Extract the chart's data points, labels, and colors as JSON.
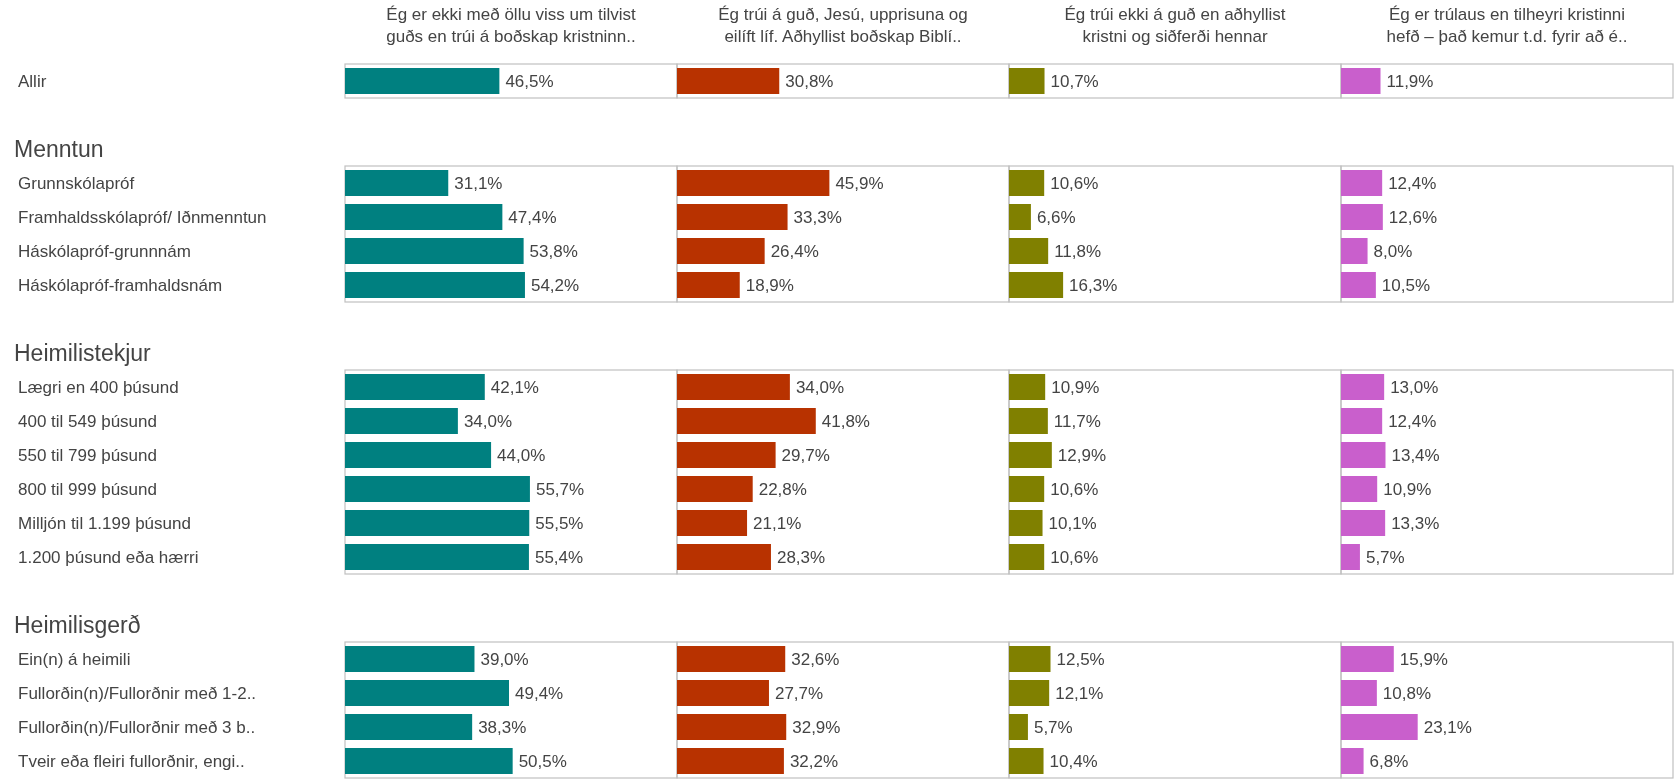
{
  "chart_data": [
    {
      "type": "bar",
      "orientation": "horizontal",
      "title": "Ég er ekki með öllu viss um tilvist\nguðs en trúi á boðskap kristninn..",
      "categories": [
        "Allir",
        null,
        "Menntun",
        "Grunnskólapróf",
        "Framhaldsskólapróf/ Iðnmenntun",
        "Háskólapróf-grunnnám",
        "Háskólapróf-framhaldsnám",
        null,
        "Heimilistekjur",
        "Lægri en 400 þúsund",
        "400 til 549 þúsund",
        "550 til 799 þúsund",
        "800 til 999 þúsund",
        "Milljón til 1.199 þúsund",
        "1.200 þúsund eða hærri",
        null,
        "Heimilisgerð",
        "Ein(n) á heimili",
        "Fullorðin(n)/Fullorðnir með 1-2..",
        "Fullorðin(n)/Fullorðnir með 3 b..",
        "Tveir eða fleiri fullorðnir, engi.."
      ],
      "values": [
        46.5,
        null,
        null,
        31.1,
        47.4,
        53.8,
        54.2,
        null,
        null,
        42.1,
        34.0,
        44.0,
        55.7,
        55.5,
        55.4,
        null,
        null,
        39.0,
        49.4,
        38.3,
        50.5
      ],
      "value_labels": [
        "46,5%",
        null,
        null,
        "31,1%",
        "47,4%",
        "53,8%",
        "54,2%",
        null,
        null,
        "42,1%",
        "34,0%",
        "44,0%",
        "55,7%",
        "55,5%",
        "55,4%",
        null,
        null,
        "39,0%",
        "49,4%",
        "38,3%",
        "50,5%"
      ],
      "color": "#008080",
      "xlim": [
        0,
        100
      ],
      "tick_labels": "y"
    },
    {
      "type": "bar",
      "orientation": "horizontal",
      "title": "Ég trúi á guð, Jesú, upprisuna og\neilíft líf. Aðhyllist boðskap Biblí..",
      "categories": [
        null,
        null,
        null,
        null,
        null,
        null,
        null,
        null,
        null,
        null,
        null,
        null,
        null,
        null,
        null,
        null,
        null,
        null,
        null,
        null,
        null
      ],
      "values": [
        30.8,
        null,
        null,
        45.9,
        33.3,
        26.4,
        18.9,
        null,
        null,
        34.0,
        41.8,
        29.7,
        22.8,
        21.1,
        28.3,
        null,
        null,
        32.6,
        27.7,
        32.9,
        32.2
      ],
      "value_labels": [
        "30,8%",
        null,
        null,
        "45,9%",
        "33,3%",
        "26,4%",
        "18,9%",
        null,
        null,
        "34,0%",
        "41,8%",
        "29,7%",
        "22,8%",
        "21,1%",
        "28,3%",
        null,
        null,
        "32,6%",
        "27,7%",
        "32,9%",
        "32,2%"
      ],
      "color": "#b83200",
      "xlim": [
        0,
        100
      ],
      "tick_labels": false
    },
    {
      "type": "bar",
      "orientation": "horizontal",
      "title": "Ég trúi ekki á guð en aðhyllist\nkristni og siðferði hennar",
      "categories": [
        null,
        null,
        null,
        null,
        null,
        null,
        null,
        null,
        null,
        null,
        null,
        null,
        null,
        null,
        null,
        null,
        null,
        null,
        null,
        null,
        null
      ],
      "values": [
        10.7,
        null,
        null,
        10.6,
        6.6,
        11.8,
        16.3,
        null,
        null,
        10.9,
        11.7,
        12.9,
        10.6,
        10.1,
        10.6,
        null,
        null,
        12.5,
        12.1,
        5.7,
        10.4
      ],
      "value_labels": [
        "10,7%",
        null,
        null,
        "10,6%",
        "6,6%",
        "11,8%",
        "16,3%",
        null,
        null,
        "10,9%",
        "11,7%",
        "12,9%",
        "10,6%",
        "10,1%",
        "10,6%",
        null,
        null,
        "12,5%",
        "12,1%",
        "5,7%",
        "10,4%"
      ],
      "color": "#808000",
      "xlim": [
        0,
        100
      ],
      "tick_labels": false
    },
    {
      "type": "bar",
      "orientation": "horizontal",
      "title": "Ég er trúlaus en tilheyri kristinni\nhefð – það kemur t.d. fyrir að é..",
      "categories": [
        null,
        null,
        null,
        null,
        null,
        null,
        null,
        null,
        null,
        null,
        null,
        null,
        null,
        null,
        null,
        null,
        null,
        null,
        null,
        null,
        null
      ],
      "values": [
        11.9,
        null,
        null,
        12.4,
        12.6,
        8.0,
        10.5,
        null,
        null,
        13.0,
        12.4,
        13.4,
        10.9,
        13.3,
        5.7,
        null,
        null,
        15.9,
        10.8,
        23.1,
        6.8
      ],
      "value_labels": [
        "11,9%",
        null,
        null,
        "12,4%",
        "12,6%",
        "8,0%",
        "10,5%",
        null,
        null,
        "13,0%",
        "12,4%",
        "13,4%",
        "10,9%",
        "13,3%",
        "5,7%",
        null,
        null,
        "15,9%",
        "10,8%",
        "23,1%",
        "6,8%"
      ],
      "color": "#c95fcc",
      "xlim": [
        0,
        100
      ],
      "tick_labels": false
    }
  ]
}
